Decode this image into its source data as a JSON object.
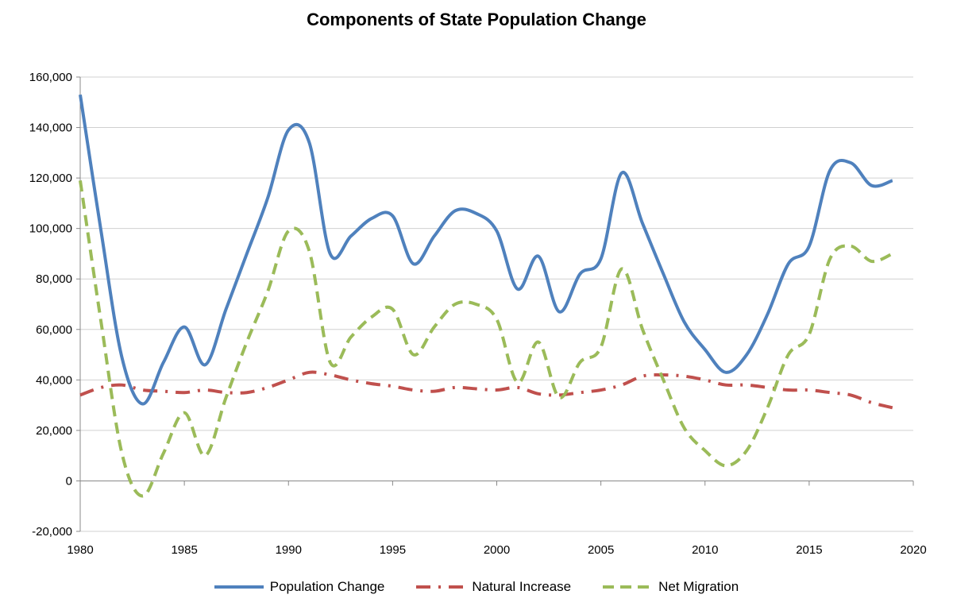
{
  "chart_data": {
    "type": "line",
    "title": "Components of State Population Change",
    "xlabel": "",
    "ylabel": "",
    "xlim": [
      1980,
      2020
    ],
    "ylim": [
      -20000,
      160000
    ],
    "x_ticks": [
      "1980",
      "1985",
      "1990",
      "1995",
      "2000",
      "2005",
      "2010",
      "2015",
      "2020"
    ],
    "y_ticks": [
      "-20,000",
      "0",
      "20,000",
      "40,000",
      "60,000",
      "80,000",
      "100,000",
      "120,000",
      "140,000",
      "160,000"
    ],
    "grid": "horizontal",
    "legend_position": "bottom",
    "x": [
      1980,
      1981,
      1982,
      1983,
      1984,
      1985,
      1986,
      1987,
      1988,
      1989,
      1990,
      1991,
      1992,
      1993,
      1994,
      1995,
      1996,
      1997,
      1998,
      1999,
      2000,
      2001,
      2002,
      2003,
      2004,
      2005,
      2006,
      2007,
      2008,
      2009,
      2010,
      2011,
      2012,
      2013,
      2014,
      2015,
      2016,
      2017,
      2018,
      2019
    ],
    "series": [
      {
        "name": "Population Change",
        "color": "#4F81BD",
        "style": "solid",
        "values": [
          153000,
          99000,
          49000,
          30500,
          47000,
          61000,
          46000,
          68000,
          90000,
          112000,
          139000,
          134000,
          90000,
          97000,
          104000,
          105000,
          86000,
          97000,
          107000,
          106000,
          99000,
          76000,
          89000,
          67000,
          82000,
          88000,
          122000,
          102000,
          82000,
          63000,
          52000,
          43000,
          50000,
          66000,
          86000,
          93000,
          123000,
          126000,
          117000,
          119000
        ]
      },
      {
        "name": "Natural Increase",
        "color": "#C0504D",
        "style": "dash-dot",
        "values": [
          34000,
          37000,
          38000,
          36000,
          35500,
          35000,
          36000,
          35000,
          35000,
          37000,
          40000,
          43000,
          42000,
          40000,
          38500,
          37500,
          36000,
          35500,
          37000,
          36500,
          36000,
          37000,
          34500,
          34000,
          35000,
          36000,
          38000,
          41500,
          42000,
          41500,
          40000,
          38000,
          38000,
          37000,
          36000,
          36000,
          35000,
          34000,
          31000,
          29000
        ]
      },
      {
        "name": "Net Migration",
        "color": "#9BBB59",
        "style": "dashed",
        "values": [
          119000,
          63000,
          11000,
          -6000,
          11000,
          27000,
          10000,
          33000,
          55000,
          75000,
          99000,
          91000,
          47000,
          57000,
          65000,
          68000,
          50000,
          61000,
          70000,
          70000,
          64000,
          39000,
          55000,
          33000,
          47000,
          53000,
          84000,
          60000,
          40000,
          21000,
          12000,
          6000,
          12000,
          29000,
          50000,
          58000,
          88000,
          93000,
          87000,
          90000
        ]
      }
    ]
  }
}
